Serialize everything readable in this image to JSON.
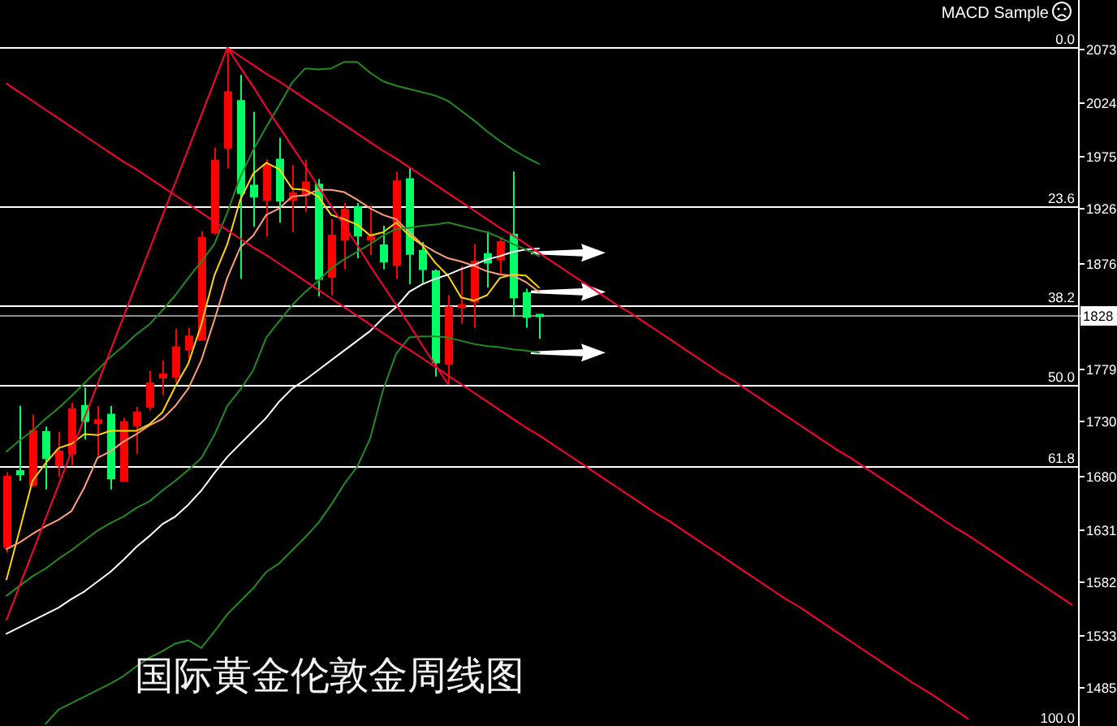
{
  "chart_data": {
    "type": "candlestick",
    "title": "国际黄金伦敦金周线图",
    "annotations": [
      "MACD Sample",
      "100.0"
    ],
    "categories": [
      null,
      null,
      null,
      null,
      null,
      null,
      null,
      null,
      null,
      null,
      null,
      null,
      null,
      null,
      null,
      null,
      null,
      null,
      null,
      null,
      null,
      null,
      null,
      null,
      null,
      null,
      null,
      null,
      null,
      null,
      null,
      null,
      null,
      null,
      null,
      null,
      null,
      null,
      null,
      null,
      null,
      null,
      null,
      null,
      null,
      null,
      null,
      null,
      null,
      null,
      null,
      null,
      null,
      null,
      null,
      null,
      null,
      null,
      null,
      null,
      null,
      null,
      null,
      null,
      null,
      null,
      null,
      null,
      null,
      null,
      null,
      null,
      null,
      null,
      null,
      null,
      null,
      null,
      null,
      null,
      null,
      null,
      null
    ],
    "ohlc": [
      [
        1615,
        1684,
        1610,
        1680
      ],
      [
        1685,
        1745,
        1676,
        1682
      ],
      [
        1672,
        1737,
        1670,
        1722
      ],
      [
        1721,
        1726,
        1668,
        1697
      ],
      [
        1690,
        1721,
        1680,
        1703
      ],
      [
        1701,
        1748,
        1690,
        1742
      ],
      [
        1745,
        1762,
        1714,
        1731
      ],
      [
        1729,
        1745,
        1697,
        1732
      ],
      [
        1737,
        1745,
        1668,
        1678
      ],
      [
        1676,
        1734,
        1675,
        1730
      ],
      [
        1727,
        1744,
        1701,
        1739
      ],
      [
        1744,
        1777,
        1741,
        1766
      ],
      [
        1771,
        1787,
        1755,
        1774
      ],
      [
        1772,
        1816,
        1767,
        1799
      ],
      [
        1797,
        1817,
        1788,
        1809
      ],
      [
        1806,
        1906,
        1805,
        1900
      ],
      [
        1905,
        1983,
        1903,
        1971
      ],
      [
        1983,
        2075,
        1964,
        2034
      ],
      [
        2026,
        2050,
        1862,
        1941
      ],
      [
        1948,
        2016,
        1910,
        1938
      ],
      [
        1935,
        1972,
        1901,
        1967
      ],
      [
        1972,
        1992,
        1914,
        1934
      ],
      [
        1935,
        1967,
        1905,
        1941
      ],
      [
        1939,
        1972,
        1924,
        1951
      ],
      [
        1949,
        1954,
        1846,
        1862
      ],
      [
        1864,
        1917,
        1847,
        1902
      ],
      [
        1898,
        1932,
        1871,
        1926
      ],
      [
        1928,
        1932,
        1881,
        1902
      ],
      [
        1898,
        1930,
        1884,
        1901
      ],
      [
        1893,
        1911,
        1871,
        1878
      ],
      [
        1875,
        1961,
        1862,
        1952
      ],
      [
        1954,
        1964,
        1857,
        1885
      ],
      [
        1888,
        1896,
        1858,
        1871
      ],
      [
        1869,
        1871,
        1772,
        1785
      ],
      [
        1784,
        1847,
        1765,
        1836
      ],
      [
        1836,
        1874,
        1821,
        1838
      ],
      [
        1841,
        1894,
        1817,
        1878
      ],
      [
        1885,
        1906,
        1854,
        1877
      ],
      [
        1880,
        1900,
        1867,
        1896
      ],
      [
        1903,
        1961,
        1827,
        1845
      ],
      [
        1849,
        1853,
        1817,
        1827
      ],
      [
        1829,
        1829,
        1807,
        1828
      ],
      null,
      null,
      null,
      null,
      null,
      null,
      null,
      null,
      null,
      null,
      null,
      null,
      null,
      null,
      null,
      null,
      null,
      null,
      null,
      null,
      null,
      null,
      null,
      null,
      null,
      null,
      null,
      null,
      null,
      null,
      null,
      null,
      null,
      null,
      null,
      null,
      null,
      null,
      null,
      null,
      null
    ],
    "colors": [
      "#ff0000",
      "#00ff66",
      "#ff0000",
      "#00ff66",
      "#ff0000",
      "#ff0000",
      "#00ff66",
      "#ff0000",
      "#00ff66",
      "#ff0000",
      "#ff0000",
      "#ff0000",
      "#ff0000",
      "#ff0000",
      "#ff0000",
      "#ff0000",
      "#ff0000",
      "#ff0000",
      "#00ff66",
      "#00ff66",
      "#ff0000",
      "#00ff66",
      "#ff0000",
      "#ff0000",
      "#00ff66",
      "#ff0000",
      "#ff0000",
      "#00ff66",
      "#ff0000",
      "#00ff66",
      "#ff0000",
      "#00ff66",
      "#00ff66",
      "#00ff66",
      "#ff0000",
      "#ff0000",
      "#ff0000",
      "#00ff66",
      "#ff0000",
      "#00ff66",
      "#00ff66",
      "#00ff66",
      null,
      null,
      null,
      null,
      null,
      null,
      null,
      null,
      null,
      null,
      null,
      null,
      null,
      null,
      null,
      null,
      null,
      null,
      null,
      null,
      null,
      null,
      null,
      null,
      null,
      null,
      null,
      null,
      null,
      null,
      null,
      null,
      null,
      null,
      null,
      null,
      null,
      null,
      null,
      null,
      null
    ],
    "series": [
      {
        "type": "line",
        "color": "#ffd700",
        "values": [
          1585,
          1630,
          1676,
          1692,
          1706,
          1710,
          1719,
          1718,
          1722,
          1722,
          1722,
          1728,
          1739,
          1763,
          1784,
          1820,
          1865,
          1894,
          1935,
          1959,
          1969,
          1963,
          1945,
          1944,
          1938,
          1921,
          1917,
          1912,
          1902,
          1905,
          1914,
          1902,
          1893,
          1877,
          1865,
          1845,
          1842,
          1847,
          1863,
          1866,
          1865,
          1854,
          null,
          null,
          null,
          null,
          null,
          null,
          null,
          null,
          null,
          null,
          null,
          null,
          null,
          null,
          null,
          null,
          null,
          null,
          null,
          null,
          null,
          null,
          null,
          null,
          null,
          null,
          null,
          null,
          null,
          null,
          null,
          null,
          null,
          null,
          null,
          null,
          null,
          null,
          null,
          null,
          null
        ]
      },
      {
        "type": "line",
        "color": "#ffa07a",
        "values": [
          1613,
          1619,
          1627,
          1634,
          1640,
          1648,
          1670,
          1697,
          1703,
          1712,
          1719,
          1727,
          1733,
          1745,
          1761,
          1787,
          1824,
          1863,
          1891,
          1902,
          1921,
          1927,
          1938,
          1939,
          1944,
          1944,
          1942,
          1935,
          1927,
          1921,
          1917,
          1905,
          1894,
          1887,
          1881,
          1878,
          1874,
          1869,
          1866,
          1865,
          1859,
          1850,
          null,
          null,
          null,
          null,
          null,
          null,
          null,
          null,
          null,
          null,
          null,
          null,
          null,
          null,
          null,
          null,
          null,
          null,
          null,
          null,
          null,
          null,
          null,
          null,
          null,
          null,
          null,
          null,
          null,
          null,
          null,
          null,
          null,
          null,
          null,
          null,
          null,
          null,
          null,
          null,
          null
        ]
      },
      {
        "type": "line",
        "color": "#ffffff",
        "values": [
          1535,
          1541,
          1547,
          1553,
          1559,
          1567,
          1574,
          1583,
          1592,
          1603,
          1615,
          1625,
          1636,
          1643,
          1654,
          1667,
          1683,
          1698,
          1710,
          1722,
          1734,
          1749,
          1761,
          1769,
          1778,
          1787,
          1796,
          1805,
          1814,
          1826,
          1836,
          1850,
          1857,
          1862,
          1866,
          1871,
          1875,
          1880,
          1883,
          1887,
          1889,
          1890,
          null,
          null,
          null,
          null,
          null,
          null,
          null,
          null,
          null,
          null,
          null,
          null,
          null,
          null,
          null,
          null,
          null,
          null,
          null,
          null,
          null,
          null,
          null,
          null,
          null,
          null,
          null,
          null,
          null,
          null,
          null,
          null,
          null,
          null,
          null,
          null,
          null,
          null,
          null,
          null,
          null
        ]
      },
      {
        "type": "line",
        "color": "#228b22",
        "values": [
          1703,
          1713,
          1722,
          1733,
          1743,
          1754,
          1766,
          1778,
          1790,
          1800,
          1811,
          1820,
          1833,
          1847,
          1863,
          1878,
          1894,
          1923,
          1956,
          1981,
          2002,
          2022,
          2043,
          2056,
          2055,
          2056,
          2062,
          2062,
          2052,
          2044,
          2040,
          2037,
          2034,
          2031,
          2026,
          2017,
          2008,
          1998,
          1989,
          1981,
          1974,
          1968,
          null,
          null,
          null,
          null,
          null,
          null,
          null,
          null,
          null,
          null,
          null,
          null,
          null,
          null,
          null,
          null,
          null,
          null,
          null,
          null,
          null,
          null,
          null,
          null,
          null,
          null,
          null,
          null,
          null,
          null,
          null,
          null,
          null,
          null,
          null,
          null,
          null,
          null,
          null,
          null,
          null
        ]
      },
      {
        "type": "line",
        "color": "#228b22",
        "values": [
          1570,
          1579,
          1588,
          1595,
          1604,
          1612,
          1621,
          1630,
          1637,
          1643,
          1651,
          1657,
          1667,
          1676,
          1686,
          1697,
          1718,
          1745,
          1760,
          1778,
          1808,
          1823,
          1838,
          1850,
          1860,
          1872,
          1880,
          1887,
          1894,
          1902,
          1908,
          1909,
          1911,
          1912,
          1914,
          1911,
          1908,
          1905,
          1900,
          1894,
          1889,
          1883,
          null,
          null,
          null,
          null,
          null,
          null,
          null,
          null,
          null,
          null,
          null,
          null,
          null,
          null,
          null,
          null,
          null,
          null,
          null,
          null,
          null,
          null,
          null,
          null,
          null,
          null,
          null,
          null,
          null,
          null,
          null,
          null,
          null,
          null,
          null,
          null,
          null,
          null,
          null,
          null,
          null
        ]
      },
      {
        "type": "line",
        "color": "#228b22",
        "values": [
          null,
          null,
          null,
          1452,
          1465,
          1471,
          1477,
          1483,
          1489,
          1496,
          1505,
          1513,
          1519,
          1526,
          1529,
          1522,
          1537,
          1553,
          1565,
          1577,
          1592,
          1600,
          1612,
          1624,
          1637,
          1654,
          1673,
          1689,
          1715,
          1760,
          1793,
          1808,
          1809,
          1809,
          1808,
          1805,
          1802,
          1800,
          1799,
          1797,
          1796,
          1794,
          null,
          null,
          null,
          null,
          null,
          null,
          null,
          null,
          null,
          null,
          null,
          null,
          null,
          null,
          null,
          null,
          null,
          null,
          null,
          null,
          null,
          null,
          null,
          null,
          null,
          null,
          null,
          null,
          null,
          null,
          null,
          null,
          null,
          null,
          null,
          null,
          null,
          null,
          null,
          null,
          null
        ]
      },
      {
        "type": "line",
        "color": "#ff0033",
        "values": [
          1548,
          1579,
          1610,
          1641,
          1672,
          1703,
          1734,
          1765,
          1796,
          1827,
          1858,
          1889,
          1920,
          1951,
          1982,
          2013,
          2044,
          2075,
          null,
          null,
          null,
          null,
          null,
          null,
          null,
          null,
          null,
          null,
          null,
          null,
          null,
          null,
          null,
          null,
          null,
          null,
          null,
          null,
          null,
          null,
          null,
          null,
          null,
          null,
          null,
          null,
          null,
          null,
          null,
          null,
          null,
          null,
          null,
          null,
          null,
          null,
          null,
          null,
          null,
          null,
          null,
          null,
          null,
          null,
          null,
          null,
          null,
          null,
          null,
          null,
          null,
          null,
          null,
          null,
          null,
          null,
          null,
          null,
          null,
          null,
          null,
          null,
          null
        ]
      },
      {
        "type": "line",
        "color": "#ff0033",
        "values": [
          null,
          null,
          null,
          null,
          null,
          null,
          null,
          null,
          null,
          null,
          null,
          null,
          null,
          null,
          null,
          null,
          null,
          2075,
          2057,
          2039,
          2020,
          2002,
          1984,
          1966,
          1947,
          1929,
          1911,
          1893,
          1874,
          1856,
          1838,
          1820,
          1801,
          1783,
          1765,
          null,
          null,
          null,
          null,
          null,
          null,
          null,
          null,
          null,
          null,
          null,
          null,
          null,
          null,
          null,
          null,
          null,
          null,
          null,
          null,
          null,
          null,
          null,
          null,
          null,
          null,
          null,
          null,
          null,
          null,
          null,
          null,
          null,
          null,
          null,
          null,
          null,
          null,
          null,
          null,
          null,
          null,
          null,
          null,
          null,
          null,
          null,
          null
        ]
      },
      {
        "type": "line",
        "color": "#ff0033",
        "values": [
          null,
          null,
          null,
          null,
          null,
          null,
          null,
          null,
          null,
          null,
          null,
          null,
          null,
          null,
          null,
          null,
          null,
          2075,
          2067,
          2059,
          2051,
          2044,
          2036,
          2028,
          2020,
          2012,
          2004,
          1996,
          1988,
          1980,
          1973,
          1965,
          1957,
          1949,
          1941,
          1933,
          1925,
          1917,
          1909,
          1902,
          1894,
          1886,
          1878,
          1870,
          1862,
          1854,
          1846,
          1838,
          1831,
          1823,
          1815,
          1807,
          1799,
          1791,
          1783,
          1775,
          1768,
          1760,
          1752,
          1744,
          1736,
          1728,
          1720,
          1712,
          1704,
          1697,
          1689,
          1681,
          1673,
          1665,
          1657,
          1649,
          1641,
          1633,
          1626,
          1618,
          1610,
          1602,
          1594,
          1586,
          1578,
          1570,
          1562
        ]
      },
      {
        "type": "line",
        "color": "#ff0033",
        "values": [
          2042,
          2034,
          2026,
          2018,
          2010,
          2002,
          1994,
          1986,
          1978,
          1970,
          1963,
          1955,
          1947,
          1939,
          1931,
          1923,
          1915,
          1907,
          1899,
          1891,
          1884,
          1876,
          1868,
          1860,
          1852,
          1844,
          1836,
          1828,
          1820,
          1812,
          1804,
          1797,
          1789,
          1781,
          1773,
          1765,
          1757,
          1749,
          1741,
          1733,
          1725,
          1718,
          1710,
          1702,
          1694,
          1686,
          1678,
          1670,
          1662,
          1654,
          1646,
          1639,
          1631,
          1623,
          1615,
          1607,
          1599,
          1591,
          1583,
          1575,
          1567,
          1560,
          1552,
          1544,
          1536,
          1528,
          1520,
          1512,
          1504,
          1496,
          1488,
          1481,
          1473,
          1465,
          1457,
          null,
          null,
          null,
          null,
          null,
          null,
          null,
          null
        ]
      }
    ],
    "ylim": [
      1450,
      2119
    ],
    "yticks": [
      1485,
      1533,
      1582,
      1631,
      1680,
      1730,
      1779,
      1876,
      1926,
      1975,
      2024,
      2073
    ],
    "y2lim": [
      100.16,
      -7.05
    ],
    "ref_lines": [
      {
        "axis": "y2",
        "value": 0,
        "label": "0.0",
        "color": "#ffffff"
      },
      {
        "axis": "y2",
        "value": 23.6,
        "label": "23.6",
        "color": "#ffffff"
      },
      {
        "axis": "y2",
        "value": 38.2,
        "label": "38.2",
        "color": "#ffffff"
      },
      {
        "axis": "y2",
        "value": 50,
        "label": "50.0",
        "color": "#ffffff"
      },
      {
        "axis": "y2",
        "value": 61.8,
        "label": "61.8",
        "color": "#ffffff"
      },
      {
        "axis": "y",
        "value": 1828,
        "label": "1828",
        "color": "#8c8c8c"
      }
    ],
    "tick_labels": "y"
  }
}
